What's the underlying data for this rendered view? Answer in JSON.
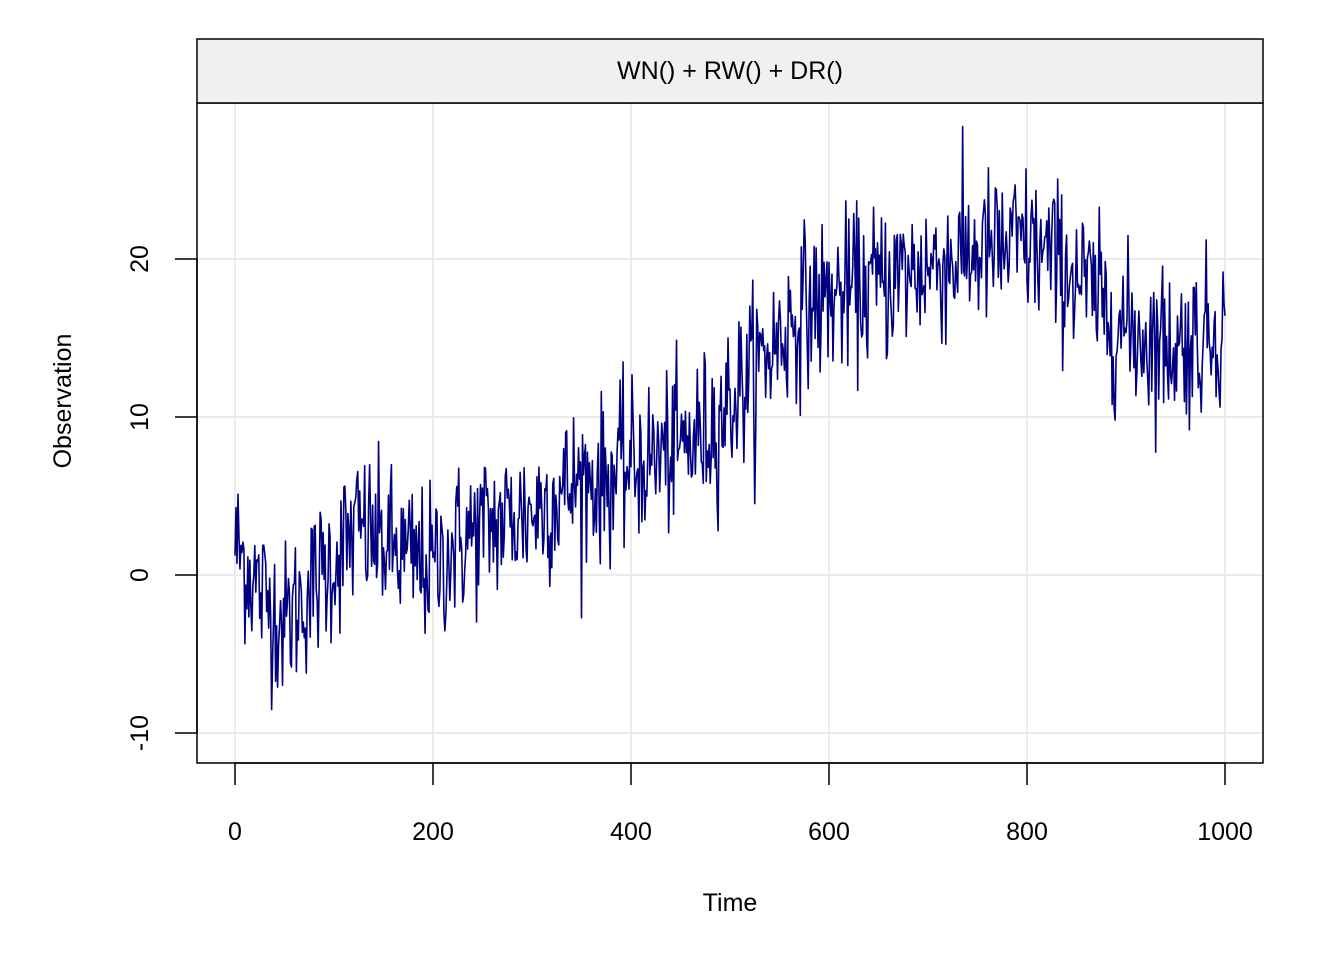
{
  "chart_data": {
    "type": "line",
    "title": "WN() + RW() + DR()",
    "xlabel": "Time",
    "ylabel": "Observation",
    "xlim": [
      0,
      1000
    ],
    "ylim": [
      -12,
      29
    ],
    "x_ticks": [
      0,
      200,
      400,
      600,
      800,
      1000
    ],
    "y_ticks": [
      -10,
      0,
      10,
      20
    ],
    "x_tick_labels": [
      "0",
      "200",
      "400",
      "600",
      "800",
      "1000"
    ],
    "y_tick_labels": [
      "-10",
      "0",
      "10",
      "20"
    ],
    "grid": true,
    "colors": {
      "series": "#000080",
      "grid": "#ebebeb",
      "strip": "#f0f0f0",
      "frame": "#000000"
    },
    "series": [
      {
        "x": [
          0,
          25,
          50,
          75,
          100,
          125,
          150,
          175,
          200,
          225,
          250,
          275,
          300,
          325,
          350,
          375,
          400,
          425,
          450,
          475,
          500,
          525,
          550,
          575,
          600,
          625,
          650,
          675,
          700,
          725,
          750,
          775,
          800,
          825,
          850,
          875,
          900,
          925,
          950,
          975,
          1000
        ],
        "y": [
          2,
          -1,
          -3,
          -1,
          1,
          3,
          2,
          1,
          0.5,
          2,
          3,
          3.5,
          4,
          5,
          6,
          6,
          7,
          7.5,
          8,
          9,
          11,
          13,
          15,
          17,
          17.5,
          18,
          18.5,
          19,
          19.5,
          20,
          20.5,
          20.5,
          21,
          20,
          19,
          17,
          15.5,
          15,
          14.5,
          15,
          16
        ],
        "noise_sd": 2.5
      }
    ]
  }
}
